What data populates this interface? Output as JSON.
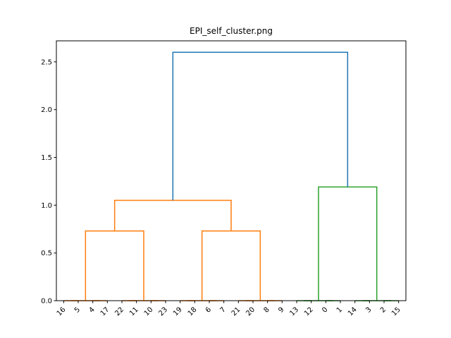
{
  "chart_data": {
    "type": "dendrogram",
    "title": "EPI_self_cluster.png",
    "xlabel": "",
    "ylabel": "",
    "ylim": [
      0,
      2.72
    ],
    "y_ticks": [
      "0.0",
      "0.5",
      "1.0",
      "1.5",
      "2.0",
      "2.5"
    ],
    "leaf_order": [
      "16",
      "5",
      "4",
      "17",
      "22",
      "11",
      "10",
      "23",
      "19",
      "18",
      "6",
      "7",
      "21",
      "20",
      "8",
      "9",
      "13",
      "12",
      "0",
      "1",
      "14",
      "3",
      "2",
      "15"
    ],
    "colors": {
      "root": "#1f77b4",
      "cluster_a": "#ff7f0e",
      "cluster_b": "#2ca02c"
    },
    "links": [
      {
        "x": [
          5,
          5,
          15,
          15
        ],
        "y": [
          0,
          0,
          0,
          0
        ],
        "color": "cluster_a"
      },
      {
        "x": [
          25,
          25,
          35,
          35
        ],
        "y": [
          0,
          0,
          0,
          0
        ],
        "color": "cluster_a"
      },
      {
        "x": [
          10,
          10,
          30,
          30
        ],
        "y": [
          0,
          0,
          0,
          0
        ],
        "color": "cluster_a"
      },
      {
        "x": [
          45,
          45,
          55,
          55
        ],
        "y": [
          0,
          0,
          0,
          0
        ],
        "color": "cluster_a"
      },
      {
        "x": [
          65,
          65,
          75,
          75
        ],
        "y": [
          0,
          0,
          0,
          0
        ],
        "color": "cluster_a"
      },
      {
        "x": [
          50,
          50,
          70,
          70
        ],
        "y": [
          0,
          0,
          0,
          0
        ],
        "color": "cluster_a"
      },
      {
        "x": [
          20,
          20,
          60,
          60
        ],
        "y": [
          0,
          0.73,
          0.73,
          0
        ],
        "color": "cluster_a"
      },
      {
        "x": [
          85,
          85,
          95,
          95
        ],
        "y": [
          0,
          0,
          0,
          0
        ],
        "color": "cluster_a"
      },
      {
        "x": [
          105,
          105,
          115,
          115
        ],
        "y": [
          0,
          0,
          0,
          0
        ],
        "color": "cluster_a"
      },
      {
        "x": [
          90,
          90,
          110,
          110
        ],
        "y": [
          0,
          0,
          0,
          0
        ],
        "color": "cluster_a"
      },
      {
        "x": [
          125,
          125,
          135,
          135
        ],
        "y": [
          0,
          0,
          0,
          0
        ],
        "color": "cluster_a"
      },
      {
        "x": [
          145,
          145,
          155,
          155
        ],
        "y": [
          0,
          0,
          0,
          0
        ],
        "color": "cluster_a"
      },
      {
        "x": [
          130,
          130,
          150,
          150
        ],
        "y": [
          0,
          0,
          0,
          0
        ],
        "color": "cluster_a"
      },
      {
        "x": [
          100,
          100,
          140,
          140
        ],
        "y": [
          0,
          0.73,
          0.73,
          0
        ],
        "color": "cluster_a"
      },
      {
        "x": [
          40,
          40,
          120,
          120
        ],
        "y": [
          0.73,
          1.05,
          1.05,
          0.73
        ],
        "color": "cluster_a"
      },
      {
        "x": [
          165,
          165,
          175,
          175
        ],
        "y": [
          0,
          0,
          0,
          0
        ],
        "color": "cluster_b"
      },
      {
        "x": [
          185,
          185,
          195,
          195
        ],
        "y": [
          0,
          0,
          0,
          0
        ],
        "color": "cluster_b"
      },
      {
        "x": [
          170,
          170,
          190,
          190
        ],
        "y": [
          0,
          0,
          0,
          0
        ],
        "color": "cluster_b"
      },
      {
        "x": [
          205,
          205,
          215,
          215
        ],
        "y": [
          0,
          0,
          0,
          0
        ],
        "color": "cluster_b"
      },
      {
        "x": [
          225,
          225,
          235,
          235
        ],
        "y": [
          0,
          0,
          0,
          0
        ],
        "color": "cluster_b"
      },
      {
        "x": [
          210,
          210,
          230,
          230
        ],
        "y": [
          0,
          0,
          0,
          0
        ],
        "color": "cluster_b"
      },
      {
        "x": [
          180,
          180,
          220,
          220
        ],
        "y": [
          0,
          1.19,
          1.19,
          0
        ],
        "color": "cluster_b"
      },
      {
        "x": [
          80,
          80,
          200,
          200
        ],
        "y": [
          1.05,
          2.6,
          2.6,
          1.19
        ],
        "color": "root"
      }
    ]
  }
}
